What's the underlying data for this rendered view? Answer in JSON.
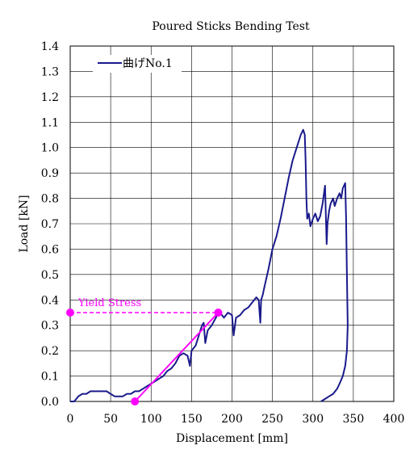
{
  "chart_data": {
    "type": "line",
    "title": "Poured Sticks Bending Test",
    "xlabel": "Displacement [mm]",
    "ylabel": "Load [kN]",
    "xlim": [
      0,
      400
    ],
    "ylim": [
      0,
      1.4
    ],
    "x_ticks": [
      "0",
      "50",
      "100",
      "150",
      "200",
      "250",
      "300",
      "350",
      "400"
    ],
    "y_ticks": [
      "0.0",
      "0.1",
      "0.2",
      "0.3",
      "0.4",
      "0.5",
      "0.6",
      "0.7",
      "0.8",
      "0.9",
      "1.0",
      "1.1",
      "1.2",
      "1.3",
      "1.4"
    ],
    "grid": true,
    "legend_position": "top-left",
    "series": [
      {
        "name": "曲げNo.1",
        "color": "#1a1a8c",
        "x": [
          0,
          5,
          10,
          15,
          20,
          25,
          30,
          35,
          40,
          45,
          50,
          55,
          60,
          65,
          70,
          75,
          80,
          85,
          90,
          95,
          100,
          105,
          110,
          115,
          120,
          125,
          130,
          135,
          140,
          145,
          148,
          150,
          155,
          160,
          163,
          165,
          167,
          170,
          175,
          180,
          183,
          185,
          190,
          195,
          200,
          202,
          205,
          210,
          215,
          220,
          225,
          230,
          233,
          235,
          236,
          238,
          240,
          245,
          250,
          255,
          260,
          265,
          270,
          275,
          280,
          285,
          288,
          290,
          291,
          292,
          293,
          295,
          297,
          300,
          303,
          306,
          309,
          312,
          315,
          317,
          318,
          320,
          322,
          325,
          327,
          330,
          333,
          335,
          337,
          340,
          341,
          342,
          343,
          342,
          340,
          337,
          333,
          330,
          325,
          320,
          315,
          310
        ],
        "y": [
          0.0,
          0.0,
          0.02,
          0.03,
          0.03,
          0.04,
          0.04,
          0.04,
          0.04,
          0.04,
          0.03,
          0.02,
          0.02,
          0.02,
          0.03,
          0.03,
          0.04,
          0.04,
          0.05,
          0.06,
          0.07,
          0.08,
          0.09,
          0.1,
          0.12,
          0.13,
          0.15,
          0.18,
          0.19,
          0.18,
          0.14,
          0.2,
          0.22,
          0.27,
          0.3,
          0.31,
          0.23,
          0.28,
          0.3,
          0.33,
          0.35,
          0.35,
          0.33,
          0.35,
          0.34,
          0.26,
          0.33,
          0.34,
          0.36,
          0.37,
          0.39,
          0.41,
          0.4,
          0.31,
          0.4,
          0.42,
          0.45,
          0.52,
          0.6,
          0.65,
          0.72,
          0.8,
          0.88,
          0.95,
          1.0,
          1.05,
          1.07,
          1.05,
          0.95,
          0.8,
          0.72,
          0.74,
          0.69,
          0.72,
          0.74,
          0.71,
          0.73,
          0.78,
          0.85,
          0.62,
          0.7,
          0.75,
          0.78,
          0.8,
          0.77,
          0.8,
          0.82,
          0.8,
          0.84,
          0.86,
          0.72,
          0.5,
          0.3,
          0.2,
          0.14,
          0.1,
          0.07,
          0.05,
          0.03,
          0.02,
          0.01,
          0.0
        ]
      }
    ],
    "annotations": [
      {
        "label": "Yield Stress",
        "color": "#ff00ff",
        "horizontal_line": {
          "x": [
            0,
            183
          ],
          "y": 0.35
        },
        "slope_line": {
          "x": [
            80,
            183
          ],
          "y": [
            0.0,
            0.35
          ]
        },
        "markers": [
          {
            "x": 0,
            "y": 0.35
          },
          {
            "x": 80,
            "y": 0.0
          },
          {
            "x": 183,
            "y": 0.35
          }
        ]
      }
    ]
  }
}
